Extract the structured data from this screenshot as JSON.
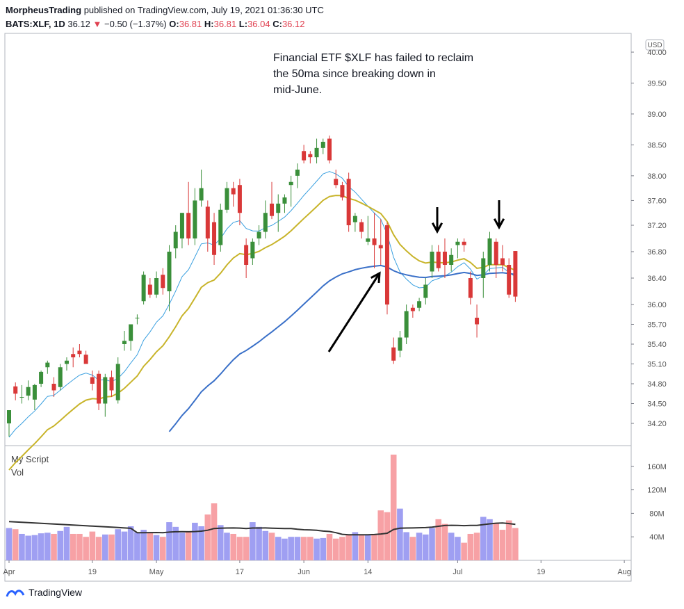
{
  "header": {
    "author": "MorpheusTrading",
    "published_text": "published on TradingView.com, July 19, 2021 01:36:30 UTC",
    "symbol": "BATS:XLF, 1D",
    "last": "36.12",
    "down_arrow": "▼",
    "change": "−0.50 (−1.37%)",
    "o_label": "O:",
    "o": "36.81",
    "h_label": "H:",
    "h": "36.81",
    "l_label": "L:",
    "l": "36.04",
    "c_label": "C:",
    "c": "36.12"
  },
  "annotation": {
    "line1": "Financial ETF $XLF has failed to reclaim",
    "line2": "the 50ma since breaking down in",
    "line3": "mid-June."
  },
  "currency_badge": "USD",
  "volume_pane": {
    "script_label": "My Script",
    "vol_label": "Vol"
  },
  "footer": {
    "brand": "TradingView"
  },
  "colors": {
    "up": "#3a8f3a",
    "down": "#d93838",
    "vol_up": "#9f9ff2",
    "vol_down": "#f7a1a5",
    "ma_fast": "#3aa0e0",
    "ma_mid": "#c8b42a",
    "ma_slow": "#3a70c8",
    "vol_ma": "#333333"
  },
  "chart_data": {
    "type": "candlestick",
    "price_ticks": [
      34.2,
      34.5,
      34.8,
      35.1,
      35.4,
      35.7,
      36.0,
      36.4,
      36.8,
      37.2,
      37.6,
      38.0,
      38.5,
      39.0,
      39.5,
      40.0
    ],
    "price_tick_labels": [
      "34.20",
      "34.50",
      "34.80",
      "35.10",
      "35.40",
      "35.70",
      "36.00",
      "36.40",
      "36.80",
      "37.20",
      "37.60",
      "38.00",
      "38.50",
      "39.00",
      "39.50",
      "40.00"
    ],
    "volume_ticks": [
      40,
      80,
      120,
      160
    ],
    "volume_tick_labels": [
      "40M",
      "80M",
      "120M",
      "160M"
    ],
    "x_labels": [
      {
        "index": 0,
        "label": "Apr"
      },
      {
        "index": 13,
        "label": "19"
      },
      {
        "index": 23,
        "label": "May"
      },
      {
        "index": 36,
        "label": "17"
      },
      {
        "index": 46,
        "label": "Jun"
      },
      {
        "index": 56,
        "label": "14"
      },
      {
        "index": 70,
        "label": "Jul"
      },
      {
        "index": 83,
        "label": "19"
      },
      {
        "index": 96,
        "label": "Aug"
      }
    ],
    "candles": [
      {
        "o": 34.2,
        "h": 34.4,
        "l": 34.0,
        "c": 34.4,
        "v": 55
      },
      {
        "o": 34.76,
        "h": 34.82,
        "l": 34.55,
        "c": 34.65,
        "v": 53
      },
      {
        "o": 34.6,
        "h": 34.78,
        "l": 34.5,
        "c": 34.6,
        "v": 45
      },
      {
        "o": 34.62,
        "h": 34.85,
        "l": 34.55,
        "c": 34.75,
        "v": 42
      },
      {
        "o": 34.56,
        "h": 34.8,
        "l": 34.4,
        "c": 34.78,
        "v": 43
      },
      {
        "o": 34.8,
        "h": 35.0,
        "l": 34.75,
        "c": 34.98,
        "v": 46
      },
      {
        "o": 35.05,
        "h": 35.15,
        "l": 34.95,
        "c": 35.12,
        "v": 47
      },
      {
        "o": 34.8,
        "h": 34.9,
        "l": 34.6,
        "c": 34.7,
        "v": 45
      },
      {
        "o": 34.75,
        "h": 35.1,
        "l": 34.7,
        "c": 35.05,
        "v": 50
      },
      {
        "o": 35.1,
        "h": 35.2,
        "l": 35.0,
        "c": 35.15,
        "v": 57
      },
      {
        "o": 35.25,
        "h": 35.35,
        "l": 35.05,
        "c": 35.2,
        "v": 45
      },
      {
        "o": 35.3,
        "h": 35.4,
        "l": 35.2,
        "c": 35.25,
        "v": 45
      },
      {
        "o": 35.24,
        "h": 35.3,
        "l": 35.1,
        "c": 35.1,
        "v": 40
      },
      {
        "o": 34.9,
        "h": 35.0,
        "l": 34.7,
        "c": 34.8,
        "v": 49
      },
      {
        "o": 34.95,
        "h": 35.0,
        "l": 34.4,
        "c": 34.5,
        "v": 40
      },
      {
        "o": 34.5,
        "h": 34.95,
        "l": 34.3,
        "c": 34.9,
        "v": 44
      },
      {
        "o": 34.9,
        "h": 35.0,
        "l": 34.6,
        "c": 34.7,
        "v": 44
      },
      {
        "o": 34.55,
        "h": 35.2,
        "l": 34.5,
        "c": 35.1,
        "v": 53
      },
      {
        "o": 35.4,
        "h": 35.6,
        "l": 35.3,
        "c": 35.45,
        "v": 49
      },
      {
        "o": 35.45,
        "h": 35.7,
        "l": 35.3,
        "c": 35.7,
        "v": 58
      },
      {
        "o": 35.8,
        "h": 35.85,
        "l": 35.7,
        "c": 35.8,
        "v": 48
      },
      {
        "o": 36.05,
        "h": 36.5,
        "l": 36.0,
        "c": 36.45,
        "v": 52
      },
      {
        "o": 36.3,
        "h": 36.4,
        "l": 36.1,
        "c": 36.15,
        "v": 48
      },
      {
        "o": 36.15,
        "h": 36.5,
        "l": 36.1,
        "c": 36.4,
        "v": 43
      },
      {
        "o": 36.45,
        "h": 36.55,
        "l": 36.15,
        "c": 36.25,
        "v": 40
      },
      {
        "o": 36.2,
        "h": 36.9,
        "l": 35.9,
        "c": 36.8,
        "v": 65
      },
      {
        "o": 36.85,
        "h": 37.2,
        "l": 36.7,
        "c": 37.1,
        "v": 57
      },
      {
        "o": 37.0,
        "h": 37.4,
        "l": 36.85,
        "c": 37.4,
        "v": 47
      },
      {
        "o": 37.4,
        "h": 37.9,
        "l": 36.9,
        "c": 37.0,
        "v": 49
      },
      {
        "o": 37.0,
        "h": 37.8,
        "l": 36.9,
        "c": 37.6,
        "v": 64
      },
      {
        "o": 37.6,
        "h": 38.1,
        "l": 37.5,
        "c": 37.8,
        "v": 58
      },
      {
        "o": 37.5,
        "h": 37.6,
        "l": 36.8,
        "c": 37.0,
        "v": 78
      },
      {
        "o": 37.25,
        "h": 37.4,
        "l": 36.6,
        "c": 36.75,
        "v": 97
      },
      {
        "o": 36.9,
        "h": 37.55,
        "l": 36.8,
        "c": 37.45,
        "v": 60
      },
      {
        "o": 37.45,
        "h": 37.9,
        "l": 37.4,
        "c": 37.8,
        "v": 47
      },
      {
        "o": 37.8,
        "h": 37.9,
        "l": 37.5,
        "c": 37.7,
        "v": 45
      },
      {
        "o": 37.85,
        "h": 37.95,
        "l": 37.2,
        "c": 37.4,
        "v": 40
      },
      {
        "o": 36.9,
        "h": 37.0,
        "l": 36.4,
        "c": 36.6,
        "v": 40
      },
      {
        "o": 36.7,
        "h": 37.0,
        "l": 36.6,
        "c": 36.95,
        "v": 65
      },
      {
        "o": 37.0,
        "h": 37.2,
        "l": 36.9,
        "c": 37.1,
        "v": 57
      },
      {
        "o": 37.1,
        "h": 37.6,
        "l": 37.0,
        "c": 37.4,
        "v": 50
      },
      {
        "o": 37.55,
        "h": 37.9,
        "l": 37.3,
        "c": 37.35,
        "v": 47
      },
      {
        "o": 37.4,
        "h": 37.7,
        "l": 37.1,
        "c": 37.55,
        "v": 40
      },
      {
        "o": 37.55,
        "h": 37.7,
        "l": 37.4,
        "c": 37.65,
        "v": 37
      },
      {
        "o": 37.85,
        "h": 38.0,
        "l": 37.5,
        "c": 37.9,
        "v": 40
      },
      {
        "o": 38.0,
        "h": 38.2,
        "l": 37.8,
        "c": 38.1,
        "v": 40
      },
      {
        "o": 38.4,
        "h": 38.5,
        "l": 38.2,
        "c": 38.25,
        "v": 40
      },
      {
        "o": 38.35,
        "h": 38.4,
        "l": 38.2,
        "c": 38.3,
        "v": 40
      },
      {
        "o": 38.3,
        "h": 38.6,
        "l": 38.2,
        "c": 38.45,
        "v": 37
      },
      {
        "o": 38.45,
        "h": 38.6,
        "l": 38.35,
        "c": 38.55,
        "v": 38
      },
      {
        "o": 38.6,
        "h": 38.65,
        "l": 38.2,
        "c": 38.25,
        "v": 45
      },
      {
        "o": 37.95,
        "h": 38.1,
        "l": 37.8,
        "c": 37.85,
        "v": 37
      },
      {
        "o": 37.85,
        "h": 37.9,
        "l": 37.6,
        "c": 37.65,
        "v": 40
      },
      {
        "o": 37.95,
        "h": 38.05,
        "l": 37.1,
        "c": 37.2,
        "v": 44
      },
      {
        "o": 37.25,
        "h": 37.4,
        "l": 37.1,
        "c": 37.35,
        "v": 48
      },
      {
        "o": 37.25,
        "h": 37.3,
        "l": 37.0,
        "c": 37.1,
        "v": 43
      },
      {
        "o": 36.95,
        "h": 37.35,
        "l": 36.9,
        "c": 37.0,
        "v": 44
      },
      {
        "o": 37.0,
        "h": 37.4,
        "l": 36.55,
        "c": 36.9,
        "v": 45
      },
      {
        "o": 36.9,
        "h": 37.3,
        "l": 36.6,
        "c": 36.85,
        "v": 85
      },
      {
        "o": 37.2,
        "h": 37.25,
        "l": 35.85,
        "c": 36.0,
        "v": 82
      },
      {
        "o": 35.35,
        "h": 35.5,
        "l": 35.1,
        "c": 35.15,
        "v": 180
      },
      {
        "o": 35.3,
        "h": 35.6,
        "l": 35.2,
        "c": 35.5,
        "v": 88
      },
      {
        "o": 35.5,
        "h": 36.0,
        "l": 35.4,
        "c": 35.9,
        "v": 48
      },
      {
        "o": 35.95,
        "h": 36.0,
        "l": 35.8,
        "c": 35.9,
        "v": 40
      },
      {
        "o": 35.95,
        "h": 36.1,
        "l": 35.9,
        "c": 36.05,
        "v": 47
      },
      {
        "o": 36.1,
        "h": 36.4,
        "l": 36.0,
        "c": 36.3,
        "v": 44
      },
      {
        "o": 36.5,
        "h": 36.9,
        "l": 36.4,
        "c": 36.8,
        "v": 55
      },
      {
        "o": 36.8,
        "h": 36.9,
        "l": 36.5,
        "c": 36.55,
        "v": 70
      },
      {
        "o": 36.8,
        "h": 37.0,
        "l": 36.4,
        "c": 36.6,
        "v": 62
      },
      {
        "o": 36.6,
        "h": 36.85,
        "l": 36.5,
        "c": 36.75,
        "v": 47
      },
      {
        "o": 36.9,
        "h": 37.0,
        "l": 36.7,
        "c": 36.95,
        "v": 40
      },
      {
        "o": 36.95,
        "h": 37.0,
        "l": 36.8,
        "c": 36.9,
        "v": 30
      },
      {
        "o": 36.4,
        "h": 36.5,
        "l": 36.0,
        "c": 36.1,
        "v": 45
      },
      {
        "o": 35.8,
        "h": 36.0,
        "l": 35.5,
        "c": 35.7,
        "v": 47
      },
      {
        "o": 36.4,
        "h": 36.8,
        "l": 36.1,
        "c": 36.7,
        "v": 74
      },
      {
        "o": 36.6,
        "h": 37.1,
        "l": 36.5,
        "c": 37.0,
        "v": 70
      },
      {
        "o": 36.95,
        "h": 37.0,
        "l": 36.4,
        "c": 36.6,
        "v": 64
      },
      {
        "o": 36.7,
        "h": 36.9,
        "l": 36.5,
        "c": 36.6,
        "v": 52
      },
      {
        "o": 36.6,
        "h": 36.7,
        "l": 36.1,
        "c": 36.15,
        "v": 68
      },
      {
        "o": 36.81,
        "h": 36.81,
        "l": 36.04,
        "c": 36.12,
        "v": 55
      }
    ]
  }
}
